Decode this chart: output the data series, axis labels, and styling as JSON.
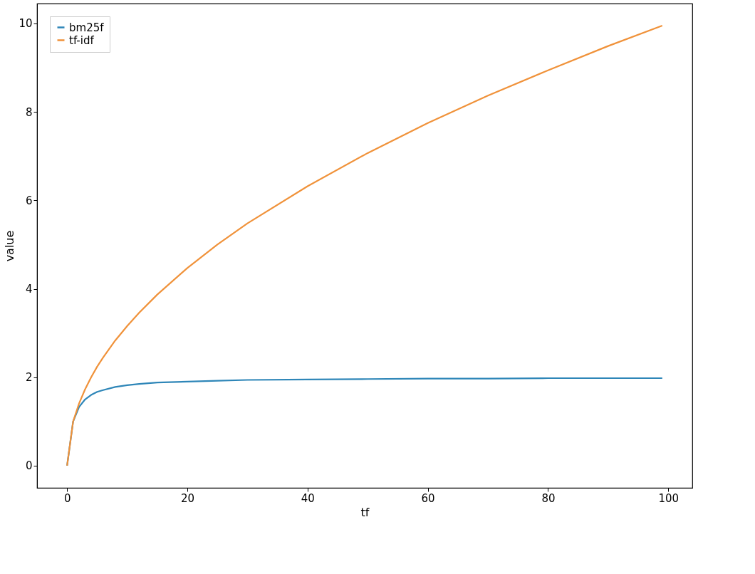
{
  "chart_data": {
    "type": "line",
    "xlabel": "tf",
    "ylabel": "value",
    "x": [
      0,
      1,
      2,
      3,
      4,
      5,
      6,
      8,
      10,
      12,
      15,
      20,
      25,
      30,
      40,
      50,
      60,
      70,
      80,
      90,
      99
    ],
    "series": [
      {
        "name": "bm25f",
        "color": "#2e86b8",
        "values": [
          0,
          1,
          1.33,
          1.5,
          1.6,
          1.67,
          1.71,
          1.78,
          1.82,
          1.85,
          1.88,
          1.9,
          1.92,
          1.94,
          1.95,
          1.96,
          1.97,
          1.97,
          1.98,
          1.98,
          1.98
        ]
      },
      {
        "name": "tf-idf",
        "color": "#f0923a",
        "values": [
          0,
          1,
          1.41,
          1.73,
          2,
          2.24,
          2.45,
          2.83,
          3.16,
          3.46,
          3.87,
          4.47,
          5,
          5.48,
          6.32,
          7.07,
          7.75,
          8.37,
          8.94,
          9.49,
          9.95
        ]
      }
    ],
    "xlim": [
      -5,
      104
    ],
    "xticks": [
      0,
      20,
      40,
      60,
      80,
      100
    ],
    "ylim": [
      -0.5,
      10.45
    ],
    "yticks": [
      0,
      2,
      4,
      6,
      8,
      10
    ],
    "grid": false,
    "legend": "top left",
    "marker": "none",
    "line_style": "solid"
  }
}
